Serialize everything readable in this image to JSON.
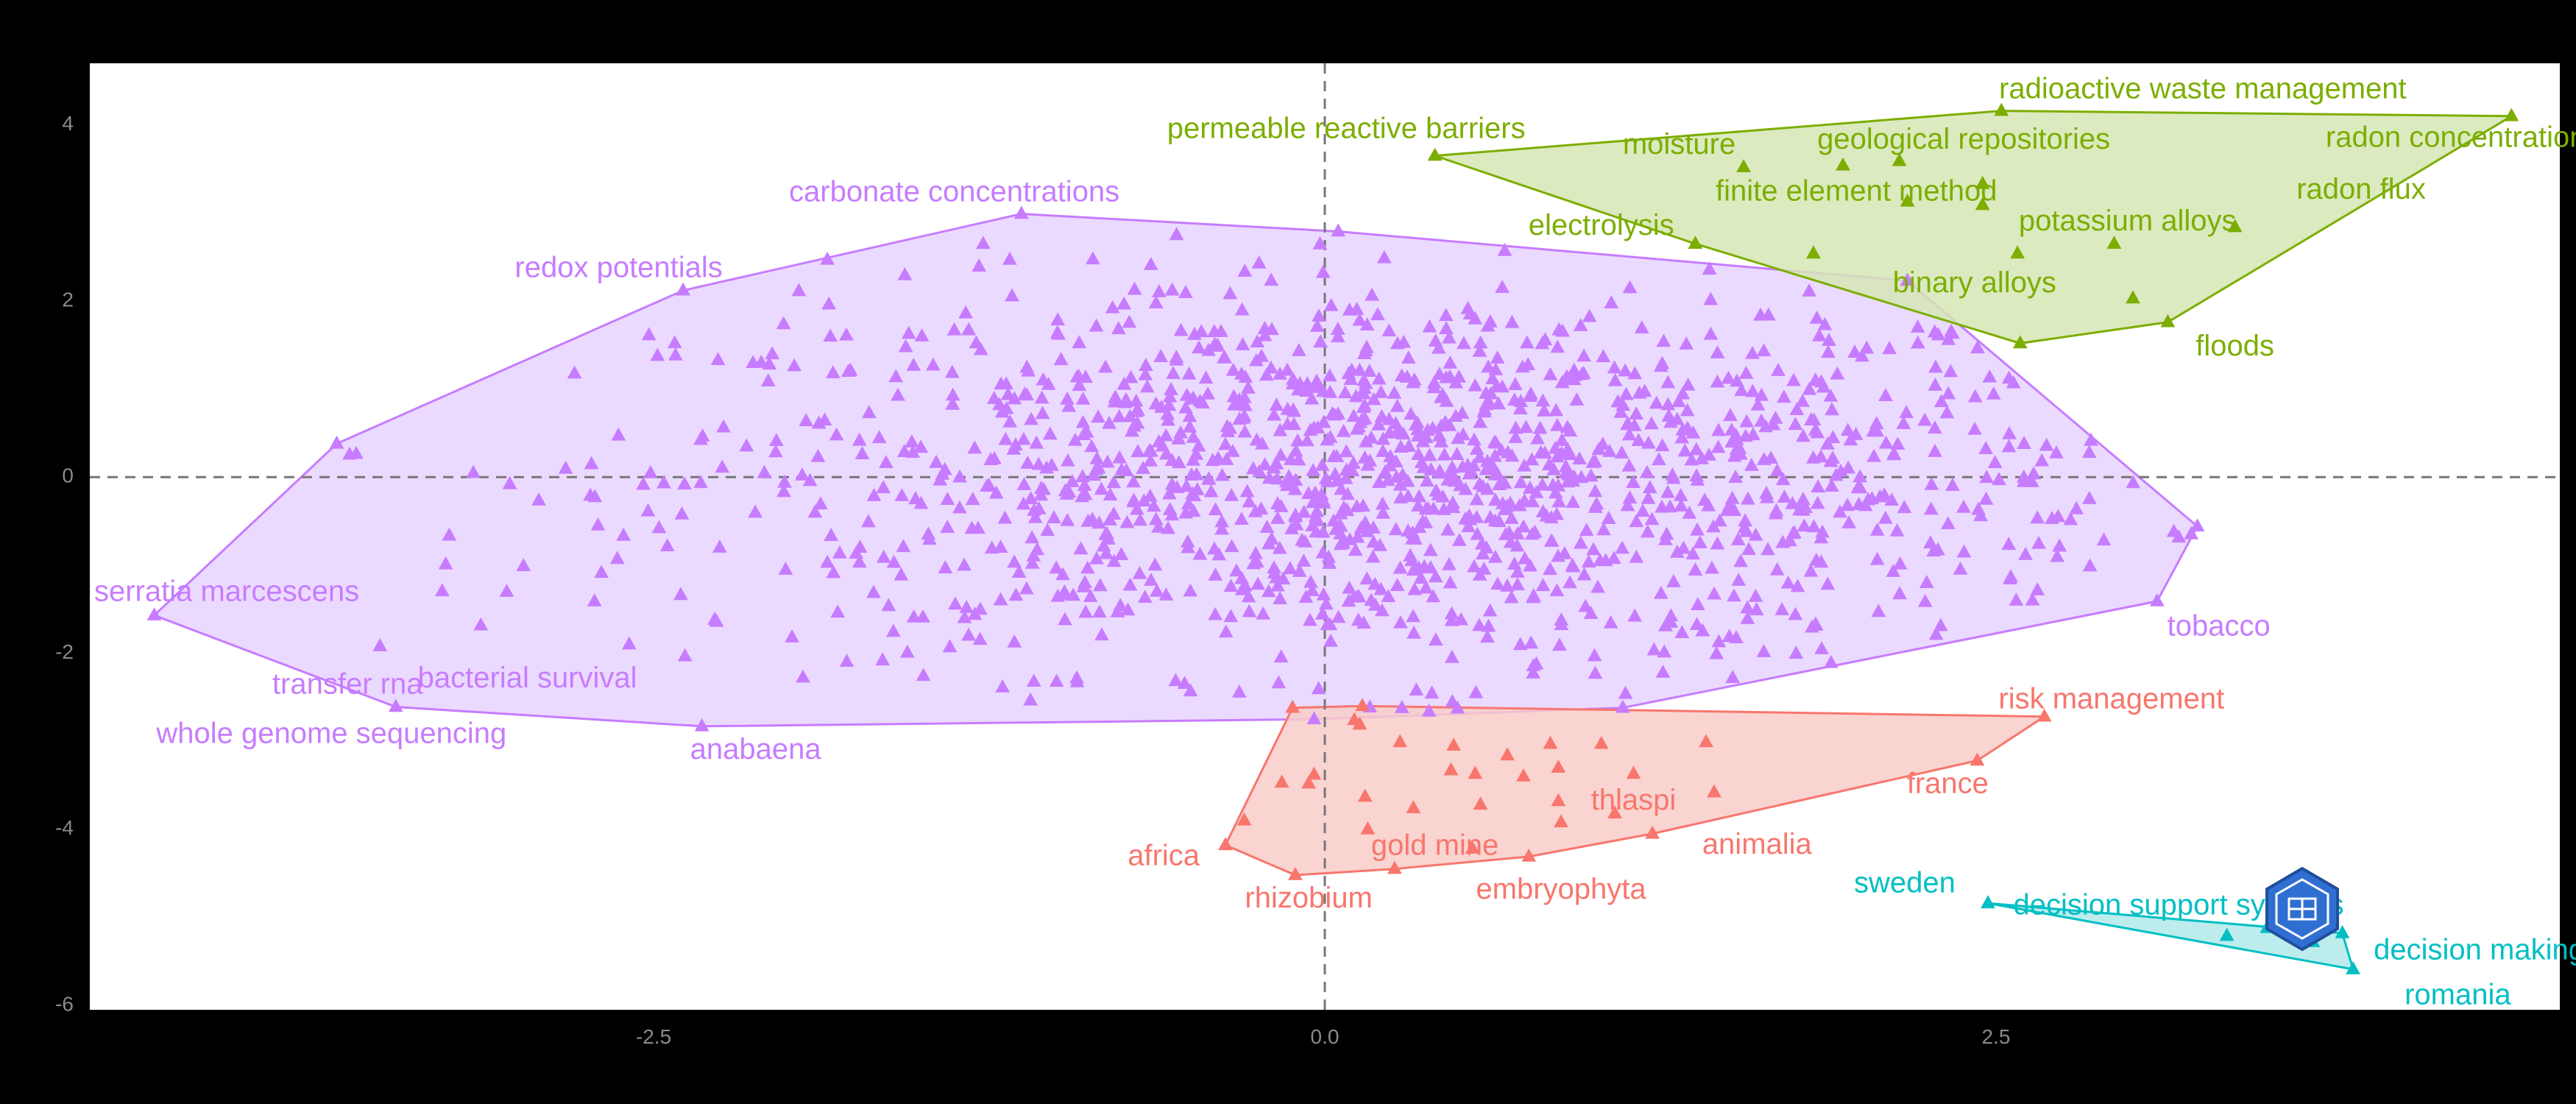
{
  "chart_data": {
    "type": "scatter",
    "xlim": [
      -4.6,
      4.6
    ],
    "ylim": [
      -6.05,
      4.7
    ],
    "x_ticks": [
      {
        "value": -2.5,
        "label": "-2.5"
      },
      {
        "value": 0,
        "label": "0.0"
      },
      {
        "value": 2.5,
        "label": "2.5"
      }
    ],
    "y_ticks": [
      {
        "value": 4,
        "label": "4"
      },
      {
        "value": 2,
        "label": "2"
      },
      {
        "value": 0,
        "label": "0"
      },
      {
        "value": -2,
        "label": "-2"
      },
      {
        "value": -4,
        "label": "-4"
      },
      {
        "value": -6,
        "label": "-6"
      }
    ],
    "reference_lines": {
      "x": 0,
      "y": 0,
      "style": "dashed"
    },
    "grid": false,
    "clusters": [
      {
        "id": "purple",
        "color": "#C77CFF",
        "fill": "#E8D4FF",
        "hull": [
          [
            -4.36,
            -1.57
          ],
          [
            -3.68,
            0.38
          ],
          [
            -2.39,
            2.12
          ],
          [
            -1.13,
            2.99
          ],
          [
            0.05,
            2.79
          ],
          [
            2.17,
            2.23
          ],
          [
            3.25,
            -0.56
          ],
          [
            3.1,
            -1.41
          ],
          [
            1.11,
            -2.62
          ],
          [
            -0.04,
            -2.75
          ],
          [
            -2.32,
            -2.83
          ],
          [
            -3.46,
            -2.61
          ]
        ],
        "point_count": 1400,
        "spread": {
          "cx": 0.3,
          "sx": 1.35,
          "cy": 0.0,
          "sy": 1.1
        },
        "labels": [
          {
            "text": "carbonate concentrations",
            "x": -1.38,
            "y": 3.22
          },
          {
            "text": "redox potentials",
            "x": -2.63,
            "y": 2.36
          },
          {
            "text": "serratia marcescens",
            "x": -4.09,
            "y": -1.32
          },
          {
            "text": "transfer rna",
            "x": -3.64,
            "y": -2.37
          },
          {
            "text": "bacterial survival",
            "x": -2.97,
            "y": -2.3
          },
          {
            "text": "whole genome sequencing",
            "x": -3.7,
            "y": -2.93
          },
          {
            "text": "anabaena",
            "x": -2.12,
            "y": -3.11
          },
          {
            "text": "tobacco",
            "x": 3.33,
            "y": -1.71
          }
        ]
      },
      {
        "id": "green",
        "color": "#7CAE00",
        "fill": "#D6E6B5",
        "hull": [
          [
            0.41,
            3.65
          ],
          [
            2.52,
            4.16
          ],
          [
            4.42,
            4.1
          ],
          [
            3.14,
            1.76
          ],
          [
            2.59,
            1.52
          ],
          [
            1.38,
            2.65
          ]
        ],
        "points": [
          [
            1.56,
            3.52
          ],
          [
            1.93,
            3.54
          ],
          [
            2.14,
            3.59
          ],
          [
            2.45,
            3.33
          ],
          [
            2.17,
            3.13
          ],
          [
            1.82,
            2.54
          ],
          [
            2.58,
            2.54
          ],
          [
            2.94,
            2.65
          ],
          [
            3.01,
            2.03
          ],
          [
            3.39,
            2.84
          ],
          [
            2.45,
            3.09
          ]
        ],
        "labels": [
          {
            "text": "radioactive waste management",
            "x": 3.27,
            "y": 4.39
          },
          {
            "text": "permeable reactive barriers",
            "x": 0.08,
            "y": 3.94
          },
          {
            "text": "radon concentrations",
            "x": 4.24,
            "y": 3.84
          },
          {
            "text": "moisture",
            "x": 1.32,
            "y": 3.76
          },
          {
            "text": "geological repositories",
            "x": 2.38,
            "y": 3.82
          },
          {
            "text": "finite element method",
            "x": 1.98,
            "y": 3.23
          },
          {
            "text": "radon flux",
            "x": 3.86,
            "y": 3.25
          },
          {
            "text": "potassium alloys",
            "x": 2.99,
            "y": 2.89
          },
          {
            "text": "electrolysis",
            "x": 1.03,
            "y": 2.84
          },
          {
            "text": "binary alloys",
            "x": 2.42,
            "y": 2.19
          },
          {
            "text": "floods",
            "x": 3.39,
            "y": 1.47
          }
        ]
      },
      {
        "id": "red",
        "color": "#F8766D",
        "fill": "#F8CDC9",
        "hull": [
          [
            -0.37,
            -4.18
          ],
          [
            -0.12,
            -2.62
          ],
          [
            0.14,
            -2.6
          ],
          [
            2.68,
            -2.72
          ],
          [
            2.43,
            -3.22
          ],
          [
            1.22,
            -4.05
          ],
          [
            0.76,
            -4.31
          ],
          [
            0.26,
            -4.45
          ],
          [
            -0.11,
            -4.52
          ]
        ],
        "points": [
          [
            -0.3,
            -3.9
          ],
          [
            -0.16,
            -3.47
          ],
          [
            -0.06,
            -3.48
          ],
          [
            0.11,
            -2.76
          ],
          [
            0.13,
            -2.81
          ],
          [
            0.28,
            -3.01
          ],
          [
            0.48,
            -3.05
          ],
          [
            0.68,
            -3.16
          ],
          [
            0.84,
            -3.03
          ],
          [
            1.03,
            -3.03
          ],
          [
            1.42,
            -3.01
          ],
          [
            0.47,
            -3.33
          ],
          [
            0.56,
            -3.37
          ],
          [
            0.74,
            -3.4
          ],
          [
            0.87,
            -3.3
          ],
          [
            0.15,
            -3.63
          ],
          [
            0.33,
            -3.76
          ],
          [
            0.58,
            -3.72
          ],
          [
            0.87,
            -3.68
          ],
          [
            1.08,
            -3.82
          ],
          [
            1.45,
            -3.58
          ],
          [
            0.16,
            -4.0
          ],
          [
            0.55,
            -4.22
          ],
          [
            0.88,
            -3.92
          ],
          [
            -0.04,
            -3.38
          ],
          [
            1.15,
            -3.37
          ]
        ],
        "labels": [
          {
            "text": "risk management",
            "x": 2.93,
            "y": -2.54
          },
          {
            "text": "france",
            "x": 2.32,
            "y": -3.5
          },
          {
            "text": "thlaspi",
            "x": 1.15,
            "y": -3.69
          },
          {
            "text": "africa",
            "x": -0.6,
            "y": -4.32
          },
          {
            "text": "gold mine",
            "x": 0.41,
            "y": -4.2
          },
          {
            "text": "animalia",
            "x": 1.61,
            "y": -4.19
          },
          {
            "text": "rhizobium",
            "x": -0.06,
            "y": -4.8
          },
          {
            "text": "embryophyta",
            "x": 0.88,
            "y": -4.7
          }
        ]
      },
      {
        "id": "cyan",
        "color": "#00BFC4",
        "fill": "#B2E9EA",
        "hull": [
          [
            2.47,
            -4.84
          ],
          [
            3.79,
            -5.18
          ],
          [
            3.83,
            -5.59
          ]
        ],
        "points": [
          [
            3.36,
            -5.21
          ],
          [
            3.51,
            -5.12
          ],
          [
            3.68,
            -5.28
          ]
        ],
        "labels": [
          {
            "text": "sweden",
            "x": 2.16,
            "y": -4.63
          },
          {
            "text": "decision support systems",
            "x": 3.18,
            "y": -4.88
          },
          {
            "text": "decision making",
            "x": 4.3,
            "y": -5.39
          },
          {
            "text": "romania",
            "x": 4.22,
            "y": -5.9
          }
        ]
      }
    ]
  }
}
